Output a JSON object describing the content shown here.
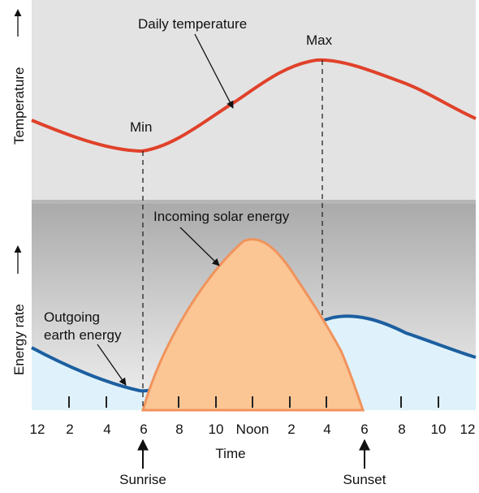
{
  "labels": {
    "temperature_axis": "Temperature",
    "energy_axis": "Energy rate",
    "daily_temperature": "Daily temperature",
    "min": "Min",
    "max": "Max",
    "incoming_solar": "Incoming solar energy",
    "outgoing_line1": "Outgoing",
    "outgoing_line2": "earth energy",
    "time_axis": "Time",
    "sunrise": "Sunrise",
    "sunset": "Sunset"
  },
  "time_ticks": [
    "12",
    "2",
    "4",
    "6",
    "8",
    "10",
    "Noon",
    "2",
    "4",
    "6",
    "8",
    "10",
    "12"
  ],
  "colors": {
    "top_panel_bg": "#e3e3e3",
    "bottom_panel_top": "#aaaaaa",
    "bottom_panel_bottom": "#f0f0f0",
    "temperature_curve": "#e0412a",
    "solar_fill": "#fbc594",
    "solar_stroke": "#f0935c",
    "earth_curve": "#1c5fa0",
    "earth_fill": "#dff2fb",
    "divider": "#b6b6b6"
  }
}
